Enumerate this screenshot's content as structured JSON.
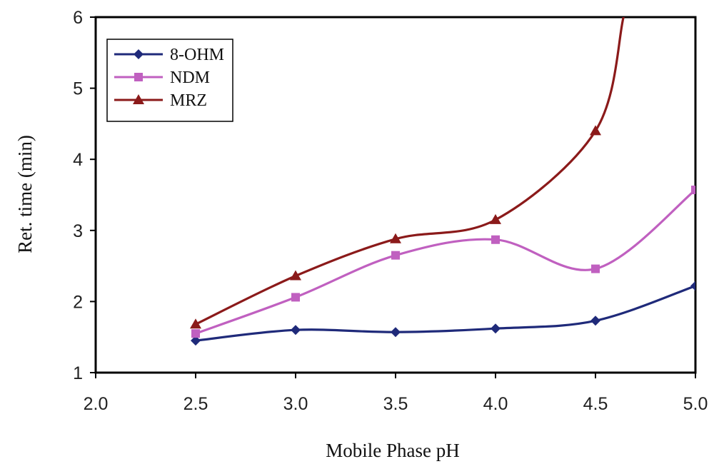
{
  "chart_data": {
    "type": "line",
    "xlabel": "Mobile Phase pH",
    "ylabel": "Ret. time (min)",
    "xlim": [
      2.0,
      5.0
    ],
    "ylim": [
      1,
      6
    ],
    "x_ticks": [
      "2.0",
      "2.5",
      "3.0",
      "3.5",
      "4.0",
      "4.5",
      "5.0"
    ],
    "y_ticks": [
      "1",
      "2",
      "3",
      "4",
      "5",
      "6"
    ],
    "x": [
      2.5,
      3.0,
      3.5,
      4.0,
      4.5,
      5.0
    ],
    "legend_position": "top-left",
    "series": [
      {
        "name": "8-OHM",
        "values": [
          1.45,
          1.6,
          1.57,
          1.62,
          1.73,
          2.22
        ],
        "color": "#1f2a7a",
        "marker": "diamond"
      },
      {
        "name": "NDM",
        "values": [
          1.55,
          2.06,
          2.65,
          2.87,
          2.46,
          3.57
        ],
        "color": "#c060c0",
        "marker": "square"
      },
      {
        "name": "MRZ",
        "values": [
          1.68,
          2.36,
          2.88,
          3.15,
          4.4,
          null
        ],
        "color": "#8b1a1a",
        "marker": "triangle"
      }
    ],
    "grid": false
  }
}
